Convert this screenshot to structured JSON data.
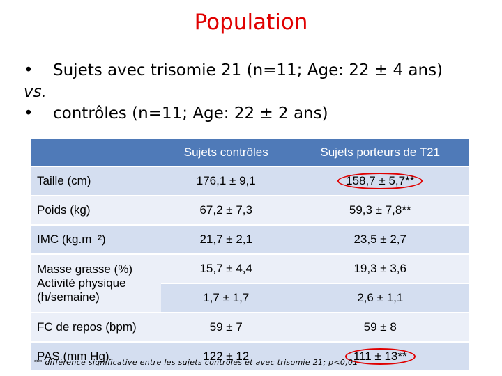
{
  "slide": {
    "title": "Population",
    "bullet1": "Sujets avec trisomie 21 (n=11; Age: 22 ± 4 ans)",
    "vs": "vs.",
    "bullet2": "contrôles (n=11; Age: 22 ± 2 ans)",
    "bullet_symbol": "•",
    "footnote": "** différence significative entre les sujets contrôles et avec trisomie 21; p<0,01"
  },
  "table": {
    "headers": [
      "",
      "Sujets contrôles",
      "Sujets porteurs de T21"
    ],
    "rows": [
      {
        "label": "Taille (cm)",
        "ctrl": "176,1 ± 9,1",
        "t21": "158,7 ± 5,7**",
        "circled": true
      },
      {
        "label": "Poids (kg)",
        "ctrl": "67,2 ± 7,3",
        "t21": "59,3 ± 7,8**",
        "circled": false
      },
      {
        "label": "IMC (kg.m⁻²)",
        "ctrl": "21,7 ± 2,1",
        "t21": "23,5 ± 2,7",
        "circled": false
      },
      {
        "label": "Masse grasse (%) Activité physique (h/semaine)",
        "ctrl": "15,7 ± 4,4",
        "t21": "19,3 ± 3,6",
        "circled": false
      },
      {
        "label": "",
        "ctrl": "1,7 ± 1,7",
        "t21": "2,6 ± 1,1",
        "circled": false
      },
      {
        "label": "FC de repos (bpm)",
        "ctrl": "59 ± 7",
        "t21": "59 ± 8",
        "circled": false
      },
      {
        "label": "PAS (mm Hg)",
        "ctrl": "122 ± 12",
        "t21": "111 ± 13**",
        "circled": true
      }
    ]
  },
  "colors": {
    "title": "#e00000",
    "header_bg": "#4f7ab8",
    "row_dark": "#d4def0",
    "row_light": "#ebeff8",
    "highlight_circle": "#e00000"
  }
}
